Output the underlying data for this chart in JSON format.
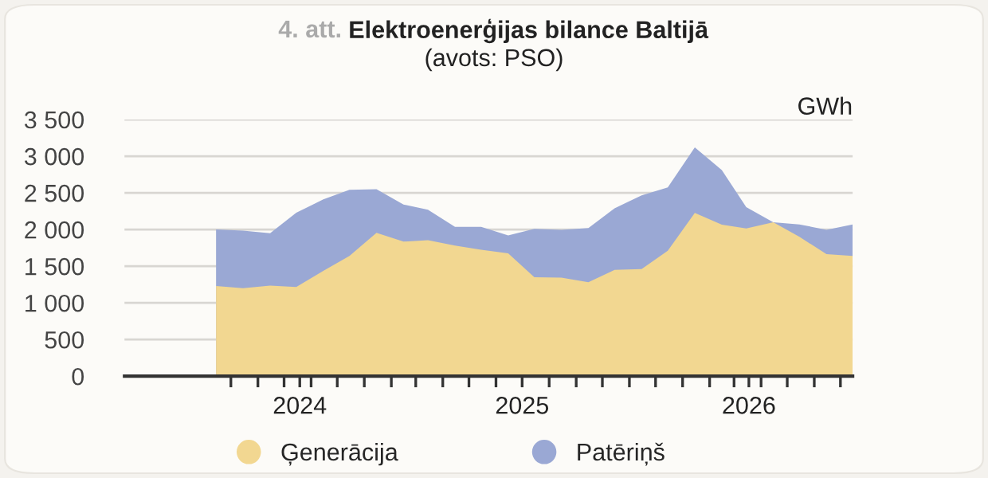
{
  "chart_data": {
    "type": "area",
    "title": "4. att. Elektroenerģijas bilance Baltijā",
    "subtitle": "(avots: PSO)",
    "ylabel": "GWh",
    "x": [
      "2024-07-15",
      "2024-08-15",
      "2024-09-15",
      "2024-10-15",
      "2024-11-15",
      "2024-12-15",
      "2025-01-15",
      "2025-02-15",
      "2025-03-15",
      "2025-04-15",
      "2025-05-15",
      "2025-06-15",
      "2025-07-15",
      "2025-08-15",
      "2025-09-15",
      "2025-10-15",
      "2025-11-15",
      "2025-12-15",
      "2026-01-15",
      "2026-02-15",
      "2026-03-15",
      "2026-04-15",
      "2026-05-15",
      "2026-06-15",
      "2026-07-15"
    ],
    "series": [
      {
        "name": "Patēriņš",
        "color": "#9aa8d4",
        "values": [
          2000,
          1985,
          1950,
          2230,
          2410,
          2540,
          2550,
          2340,
          2270,
          2035,
          2035,
          1920,
          2010,
          1995,
          2020,
          2290,
          2465,
          2575,
          3120,
          2810,
          2305,
          2100,
          2070,
          1995,
          2070
        ]
      },
      {
        "name": "Ģenerācija",
        "color": "#f2d791",
        "values": [
          1230,
          1200,
          1235,
          1215,
          1435,
          1640,
          1955,
          1835,
          1855,
          1780,
          1725,
          1675,
          1350,
          1345,
          1280,
          1450,
          1460,
          1710,
          2225,
          2065,
          2015,
          2100,
          1900,
          1665,
          1640
        ]
      }
    ],
    "xlim": [
      "2024-04-01",
      "2026-07-15"
    ],
    "xticks": [
      {
        "value": "2024-08-01",
        "label": null
      },
      {
        "value": "2024-09-01",
        "label": null
      },
      {
        "value": "2024-10-01",
        "label": null
      },
      {
        "value": "2024-10-19",
        "label": "2024"
      },
      {
        "value": "2024-11-01",
        "label": null
      },
      {
        "value": "2024-12-01",
        "label": null
      },
      {
        "value": "2025-01-01",
        "label": null
      },
      {
        "value": "2025-02-01",
        "label": null
      },
      {
        "value": "2025-03-01",
        "label": null
      },
      {
        "value": "2025-04-01",
        "label": null
      },
      {
        "value": "2025-05-01",
        "label": null
      },
      {
        "value": "2025-06-01",
        "label": null
      },
      {
        "value": "2025-07-01",
        "label": "2025"
      },
      {
        "value": "2025-08-01",
        "label": null
      },
      {
        "value": "2025-09-01",
        "label": null
      },
      {
        "value": "2025-10-01",
        "label": null
      },
      {
        "value": "2025-11-01",
        "label": null
      },
      {
        "value": "2025-12-01",
        "label": null
      },
      {
        "value": "2026-01-01",
        "label": null
      },
      {
        "value": "2026-02-01",
        "label": null
      },
      {
        "value": "2026-03-01",
        "label": null
      },
      {
        "value": "2026-03-18",
        "label": "2026"
      },
      {
        "value": "2026-04-01",
        "label": null
      },
      {
        "value": "2026-05-01",
        "label": null
      },
      {
        "value": "2026-06-01",
        "label": null
      },
      {
        "value": "2026-07-01",
        "label": null
      }
    ],
    "ylim": [
      0,
      3500
    ],
    "yticks": [
      0,
      500,
      {
        "value": 1000,
        "label": "1 000"
      },
      {
        "value": 1500,
        "label": "1 500"
      },
      {
        "value": 2000,
        "label": "2 000"
      },
      {
        "value": 2500,
        "label": "2 500"
      },
      {
        "value": 3000,
        "label": "3 000"
      },
      {
        "value": 3500,
        "label": "3 500"
      }
    ],
    "grid": "y",
    "legend": "bottom left"
  }
}
